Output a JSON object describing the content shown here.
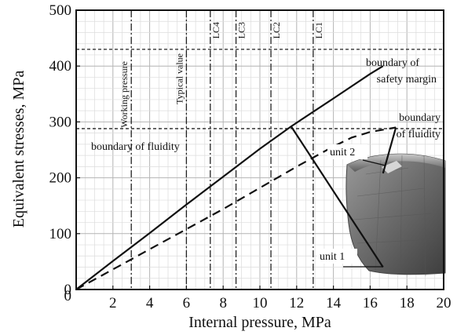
{
  "chart_data": {
    "type": "line",
    "xlabel": "Internal pressure, MPa",
    "ylabel": "Equivalent stresses, MPa",
    "xlim": [
      0,
      20
    ],
    "ylim": [
      0,
      500
    ],
    "x_ticks": [
      "0",
      "2",
      "4",
      "6",
      "8",
      "10",
      "12",
      "14",
      "16",
      "18",
      "20"
    ],
    "y_ticks": [
      "0",
      "100",
      "200",
      "300",
      "400",
      "500"
    ],
    "grid": true,
    "series": [
      {
        "name": "unit 1",
        "style": "solid",
        "x": [
          0,
          2,
          4,
          6,
          8,
          10,
          11.7,
          14,
          16,
          16.7
        ],
        "y": [
          0,
          51,
          101,
          152,
          202,
          252,
          292,
          342,
          386,
          400
        ]
      },
      {
        "name": "unit 2",
        "style": "dashed",
        "x": [
          0,
          2,
          4,
          6,
          8,
          10,
          12,
          14,
          15,
          16,
          17.4
        ],
        "y": [
          0,
          36,
          72,
          108,
          144,
          182,
          220,
          256,
          272,
          282,
          290
        ]
      }
    ],
    "reference_lines": [
      {
        "axis": "x",
        "x": 3,
        "label": "Working pressure"
      },
      {
        "axis": "x",
        "x": 6,
        "label": "Typical value"
      },
      {
        "axis": "x",
        "x": 7.3,
        "label": "LC4"
      },
      {
        "axis": "x",
        "x": 8.7,
        "label": "LC3"
      },
      {
        "axis": "x",
        "x": 10.6,
        "label": "LC2"
      },
      {
        "axis": "x",
        "x": 12.9,
        "label": "LC1"
      },
      {
        "axis": "y",
        "y": 430,
        "label": "boundary of safety margin",
        "label_lines": [
          "boundary of",
          "safety margin"
        ]
      },
      {
        "axis": "y",
        "y": 288,
        "label": "boundary of fluidity"
      }
    ],
    "annotations": [
      {
        "text": "boundary of fluidity",
        "lines": [
          "boundary of fluidity"
        ]
      },
      {
        "text": "boundary of fluidity",
        "lines": [
          "boundary",
          "of fluidity"
        ]
      },
      {
        "text": "unit 2",
        "lines": [
          "unit 2"
        ]
      },
      {
        "text": "unit 1",
        "lines": [
          "unit 1"
        ]
      }
    ],
    "pointers": [
      {
        "from": [
          11.7,
          292
        ],
        "to": [
          16.7,
          40
        ]
      },
      {
        "from": [
          17.4,
          290
        ],
        "to": [
          16.7,
          208
        ]
      }
    ]
  }
}
